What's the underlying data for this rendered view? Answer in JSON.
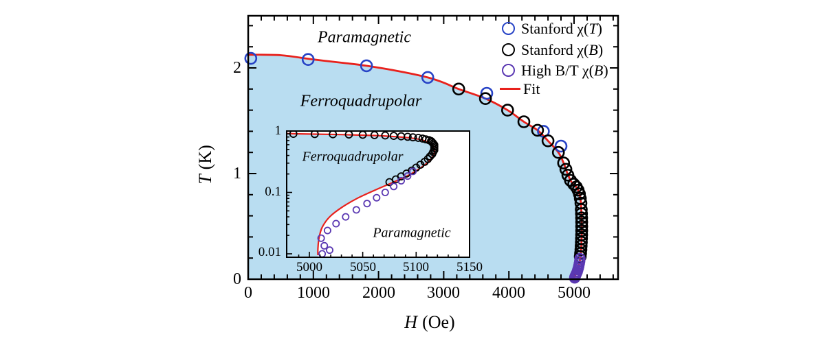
{
  "figure_title": "",
  "chart_data": {
    "type": "scatter",
    "title": "",
    "fit_color": "#e8211c",
    "legend": {
      "position": "top-right-inside",
      "items": [
        {
          "label": "Stanford χ(T)",
          "marker": "circle",
          "color": "#2743c6"
        },
        {
          "label": "Stanford χ(B)",
          "marker": "circle",
          "color": "#000000"
        },
        {
          "label": "High B/T χ(B)",
          "marker": "circle",
          "color": "#5a38b2"
        },
        {
          "label": "Fit",
          "marker": "line",
          "color": "#e8211c"
        }
      ]
    },
    "main": {
      "xlabel_var": "H",
      "xlabel_unit": "(Oe)",
      "ylabel_var": "T",
      "ylabel_unit": "(K)",
      "xlim": [
        0,
        5675
      ],
      "ylim": [
        0,
        2.49
      ],
      "xticks": [
        0,
        1000,
        2000,
        3000,
        4000,
        5000
      ],
      "xtick_labels": [
        "0",
        "1000",
        "2000",
        "3000",
        "4000",
        "5000"
      ],
      "xminor_step": 200,
      "yticks": [
        0,
        1,
        2
      ],
      "ytick_labels": [
        "0",
        "1",
        "2"
      ],
      "yminor_step": 0.2,
      "grid": false,
      "phase_fill_color": "#b9ddf1",
      "region_labels": {
        "upper": "Paramagnetic",
        "lower": "Ferroquadrupolar"
      },
      "fit_curve": [
        [
          0,
          2.125
        ],
        [
          500,
          2.12
        ],
        [
          1000,
          2.08
        ],
        [
          1500,
          2.045
        ],
        [
          1815,
          2.02
        ],
        [
          2300,
          1.97
        ],
        [
          2755,
          1.91
        ],
        [
          3000,
          1.86
        ],
        [
          3230,
          1.8
        ],
        [
          3640,
          1.71
        ],
        [
          3980,
          1.6
        ],
        [
          4230,
          1.49
        ],
        [
          4440,
          1.41
        ],
        [
          4600,
          1.31
        ],
        [
          4760,
          1.2
        ],
        [
          4840,
          1.1
        ],
        [
          4880,
          1.03
        ],
        [
          4920,
          0.97
        ],
        [
          4950,
          0.93
        ],
        [
          4990,
          0.9
        ],
        [
          5030,
          0.875
        ],
        [
          5060,
          0.845
        ],
        [
          5080,
          0.81
        ],
        [
          5095,
          0.77
        ],
        [
          5105,
          0.72
        ],
        [
          5111,
          0.66
        ],
        [
          5115,
          0.59
        ],
        [
          5117,
          0.51
        ],
        [
          5117,
          0.44
        ],
        [
          5115,
          0.375
        ],
        [
          5111,
          0.31
        ],
        [
          5104,
          0.25
        ],
        [
          5094,
          0.195
        ],
        [
          5080,
          0.15
        ],
        [
          5063,
          0.112
        ],
        [
          5046,
          0.082
        ],
        [
          5031,
          0.058
        ],
        [
          5019,
          0.04
        ],
        [
          5012,
          0.027
        ],
        [
          5009,
          0.018
        ],
        [
          5008,
          0.012
        ],
        [
          5008,
          0.0095
        ]
      ],
      "series": [
        {
          "name": "Stanford χ(T)",
          "color": "#2743c6",
          "points": [
            [
              40,
              2.09
            ],
            [
              920,
              2.08
            ],
            [
              1815,
              2.02
            ],
            [
              2755,
              1.91
            ],
            [
              3660,
              1.76
            ],
            [
              4530,
              1.4
            ],
            [
              4800,
              1.26
            ]
          ]
        },
        {
          "name": "Stanford χ(B)",
          "color": "#000000",
          "points": [
            [
              3230,
              1.8
            ],
            [
              3640,
              1.71
            ],
            [
              3980,
              1.6
            ],
            [
              4230,
              1.49
            ],
            [
              4440,
              1.41
            ],
            [
              4600,
              1.31
            ],
            [
              4760,
              1.2
            ],
            [
              4840,
              1.1
            ],
            [
              4875,
              1.04
            ],
            [
              4905,
              0.985
            ],
            [
              4945,
              0.935
            ],
            [
              4995,
              0.9
            ],
            [
              5035,
              0.873
            ],
            [
              5062,
              0.843
            ],
            [
              5082,
              0.807
            ],
            [
              5096,
              0.765
            ],
            [
              5105,
              0.72
            ],
            [
              5111,
              0.66
            ],
            [
              5114,
              0.62
            ],
            [
              5116,
              0.58
            ],
            [
              5117,
              0.54
            ],
            [
              5117,
              0.5
            ],
            [
              5117,
              0.46
            ],
            [
              5116,
              0.42
            ],
            [
              5114,
              0.385
            ],
            [
              5112,
              0.35
            ],
            [
              5109,
              0.315
            ],
            [
              5105,
              0.28
            ],
            [
              5100,
              0.245
            ],
            [
              5095,
              0.215
            ]
          ]
        },
        {
          "name": "High B/T χ(B)",
          "color": "#5a38b2",
          "points": [
            [
              5091,
              0.195
            ],
            [
              5086,
              0.17
            ],
            [
              5080,
              0.148
            ],
            [
              5073,
              0.125
            ],
            [
              5065,
              0.105
            ],
            [
              5057,
              0.088
            ],
            [
              5048,
              0.07
            ],
            [
              5038,
              0.055
            ],
            [
              5028,
              0.042
            ],
            [
              5019,
              0.03
            ],
            [
              5013,
              0.02
            ],
            [
              5009,
              0.012
            ]
          ]
        }
      ]
    },
    "inset": {
      "xlim": [
        4979,
        5150
      ],
      "ylim": [
        0.0088,
        1
      ],
      "yscale": "log",
      "xticks": [
        5000,
        5050,
        5100,
        5150
      ],
      "xtick_labels": [
        "5000",
        "5050",
        "5100",
        "5150"
      ],
      "xminor_step": 10,
      "yticks": [
        1,
        0.1,
        0.01
      ],
      "ytick_labels": [
        "1",
        "0.1",
        "0.01"
      ],
      "region_labels": {
        "upper_left": "Ferroquadrupolar",
        "lower_right": "Paramagnetic"
      },
      "fit_curve_note": "same fit curve as main panel",
      "series": [
        {
          "name": "Stanford χ(B)",
          "color": "#000000",
          "points": [
            [
              4985,
              0.9
            ],
            [
              5005,
              0.893
            ],
            [
              5022,
              0.886
            ],
            [
              5037,
              0.878
            ],
            [
              5050,
              0.868
            ],
            [
              5061,
              0.857
            ],
            [
              5071,
              0.845
            ],
            [
              5079,
              0.833
            ],
            [
              5086,
              0.82
            ],
            [
              5092,
              0.806
            ],
            [
              5097,
              0.79
            ],
            [
              5102,
              0.773
            ],
            [
              5106,
              0.754
            ],
            [
              5109,
              0.733
            ],
            [
              5112,
              0.71
            ],
            [
              5114,
              0.685
            ],
            [
              5115,
              0.658
            ],
            [
              5116,
              0.628
            ],
            [
              5117,
              0.595
            ],
            [
              5117,
              0.56
            ],
            [
              5117,
              0.525
            ],
            [
              5117,
              0.49
            ],
            [
              5116,
              0.455
            ],
            [
              5115,
              0.42
            ],
            [
              5113,
              0.385
            ],
            [
              5111,
              0.35
            ],
            [
              5108,
              0.315
            ],
            [
              5104,
              0.283
            ],
            [
              5100,
              0.253
            ],
            [
              5096,
              0.227
            ],
            [
              5091,
              0.203
            ],
            [
              5086,
              0.182
            ],
            [
              5081,
              0.163
            ],
            [
              5075,
              0.147
            ]
          ]
        },
        {
          "name": "High B/T χ(B)",
          "color": "#5a38b2",
          "points": [
            [
              5097,
              0.22
            ],
            [
              5092,
              0.185
            ],
            [
              5086,
              0.155
            ],
            [
              5079,
              0.125
            ],
            [
              5071,
              0.1
            ],
            [
              5063,
              0.082
            ],
            [
              5054,
              0.066
            ],
            [
              5044,
              0.052
            ],
            [
              5034,
              0.04
            ],
            [
              5025,
              0.031
            ],
            [
              5017,
              0.024
            ],
            [
              5011,
              0.018
            ],
            [
              5014,
              0.0135
            ],
            [
              5019,
              0.0115
            ],
            [
              5012,
              0.01
            ]
          ]
        }
      ]
    }
  }
}
